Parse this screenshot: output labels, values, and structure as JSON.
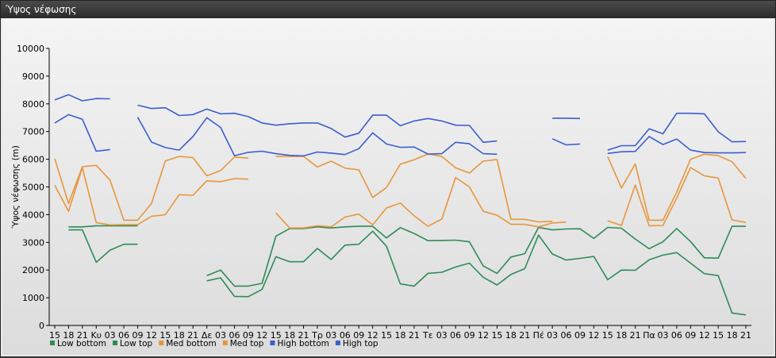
{
  "window": {
    "title": "Ύψος νέφωσης"
  },
  "chart_data": {
    "type": "line",
    "title": "",
    "xlabel": "",
    "ylabel": "Ύψος νέφωσης (m)",
    "ylim": [
      0,
      10000
    ],
    "yticks": [
      0,
      1000,
      2000,
      3000,
      4000,
      5000,
      6000,
      7000,
      8000,
      9000,
      10000
    ],
    "grid": false,
    "legend_position": "bottom-left",
    "categories": [
      "15",
      "18",
      "21",
      "Κυ",
      "03",
      "06",
      "09",
      "12",
      "15",
      "18",
      "21",
      "Δε",
      "03",
      "06",
      "09",
      "12",
      "15",
      "18",
      "21",
      "Τρ",
      "03",
      "06",
      "09",
      "12",
      "15",
      "18",
      "21",
      "Τε",
      "03",
      "06",
      "09",
      "12",
      "15",
      "18",
      "21",
      "Πέ",
      "03",
      "06",
      "09",
      "12",
      "15",
      "18",
      "21",
      "Πα",
      "03",
      "06",
      "09",
      "12",
      "15",
      "18",
      "21"
    ],
    "series": [
      {
        "name": "Low bottom",
        "color": "#2e8b57",
        "values": [
          null,
          3450,
          3450,
          2280,
          2720,
          2930,
          2930,
          null,
          null,
          null,
          null,
          1610,
          1720,
          1050,
          1040,
          1300,
          2480,
          2300,
          2300,
          2780,
          2380,
          2900,
          2930,
          3400,
          2860,
          1500,
          1420,
          1880,
          1920,
          2110,
          2250,
          1740,
          1460,
          1840,
          2050,
          3260,
          2580,
          2360,
          2420,
          2490,
          1650,
          2000,
          1990,
          2370,
          2540,
          2630,
          2250,
          1870,
          1800,
          450,
          380
        ]
      },
      {
        "name": "Low top",
        "color": "#2e8b57",
        "values": [
          null,
          3560,
          3560,
          3600,
          3600,
          3600,
          3600,
          null,
          null,
          null,
          null,
          1800,
          2000,
          1420,
          1420,
          1520,
          3220,
          3500,
          3500,
          3560,
          3520,
          3560,
          3580,
          3580,
          3160,
          3530,
          3320,
          3060,
          3070,
          3080,
          3020,
          2150,
          1880,
          2470,
          2590,
          3540,
          3450,
          3480,
          3490,
          3140,
          3540,
          3510,
          3120,
          2770,
          3020,
          3500,
          3030,
          2440,
          2430,
          3580,
          3580
        ]
      },
      {
        "name": "Med bottom",
        "color": "#e8963c",
        "values": [
          5060,
          4120,
          5700,
          3710,
          3630,
          3640,
          3640,
          3940,
          4000,
          4720,
          4700,
          5220,
          5190,
          5300,
          5280,
          null,
          4060,
          3520,
          3520,
          3600,
          3560,
          3910,
          4020,
          3630,
          4240,
          4420,
          3960,
          3580,
          3840,
          5340,
          5000,
          4120,
          3980,
          3650,
          3650,
          3560,
          3700,
          3730,
          null,
          null,
          3780,
          3610,
          5070,
          3600,
          3610,
          4600,
          5700,
          5400,
          5320,
          3810,
          3720
        ]
      },
      {
        "name": "Med top",
        "color": "#e8963c",
        "values": [
          6020,
          4400,
          5730,
          5780,
          5240,
          3800,
          3800,
          4400,
          5940,
          6100,
          6060,
          5400,
          5590,
          6080,
          6040,
          null,
          6100,
          6100,
          6100,
          5720,
          5930,
          5680,
          5620,
          4620,
          4980,
          5820,
          5980,
          6190,
          6100,
          5690,
          5500,
          5930,
          5990,
          3830,
          3830,
          3740,
          3760,
          null,
          null,
          null,
          6100,
          4960,
          5830,
          3800,
          3800,
          4820,
          6000,
          6180,
          6130,
          5910,
          5310
        ]
      },
      {
        "name": "High bottom",
        "color": "#3b5fd0",
        "values": [
          7310,
          7610,
          7440,
          6290,
          6350,
          null,
          7520,
          6620,
          6420,
          6330,
          6820,
          7500,
          7150,
          6130,
          6250,
          6290,
          6200,
          6140,
          6120,
          6260,
          6220,
          6170,
          6380,
          6950,
          6550,
          6430,
          6440,
          6190,
          6200,
          6610,
          6560,
          6200,
          6180,
          null,
          null,
          null,
          6740,
          6520,
          6550,
          null,
          6210,
          6270,
          6280,
          6820,
          6530,
          6730,
          6330,
          6240,
          6230,
          6230,
          6240
        ]
      },
      {
        "name": "High top",
        "color": "#3b5fd0",
        "values": [
          8140,
          8330,
          8110,
          8190,
          8180,
          null,
          7950,
          7830,
          7860,
          7580,
          7610,
          7810,
          7640,
          7660,
          7540,
          7310,
          7230,
          7280,
          7310,
          7310,
          7110,
          6800,
          6940,
          7590,
          7590,
          7210,
          7380,
          7470,
          7380,
          7230,
          7220,
          6610,
          6660,
          null,
          null,
          null,
          7480,
          7480,
          7470,
          null,
          6330,
          6490,
          6490,
          7100,
          6920,
          7660,
          7660,
          7640,
          6990,
          6630,
          6640
        ]
      }
    ]
  }
}
